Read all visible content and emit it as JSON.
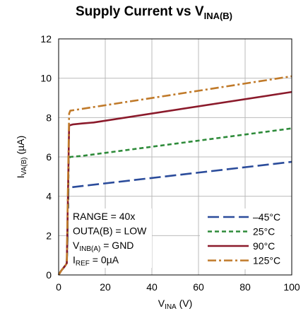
{
  "chart_data": {
    "type": "line",
    "title": "Supply Current vs V",
    "title_sub": "INA(B)",
    "xlabel": "V",
    "xlabel_sub": "INA",
    "xlabel_unit": " (V)",
    "ylabel": "I",
    "ylabel_sub": "VA(B)",
    "ylabel_unit": " (µA)",
    "xlim": [
      0,
      100
    ],
    "ylim": [
      0,
      12
    ],
    "x_ticks": [
      0,
      20,
      40,
      60,
      80,
      100
    ],
    "y_ticks": [
      0,
      2,
      4,
      6,
      8,
      10,
      12
    ],
    "grid": true,
    "annotations": [
      {
        "main": "RANGE = 40x"
      },
      {
        "main": "OUTA(B) = LOW"
      },
      {
        "main": "V",
        "sub": "INB(A)",
        "rest": " = GND"
      },
      {
        "main": "I",
        "sub": "REF",
        "rest": " = 0µA"
      }
    ],
    "legend_position": "bottom-right",
    "series": [
      {
        "name": "–45°C",
        "color": "#2B4C9B",
        "dash": "long-dash",
        "points": [
          [
            0,
            0
          ],
          [
            1,
            0.2
          ],
          [
            2,
            0.35
          ],
          [
            3,
            0.5
          ],
          [
            3.5,
            0.6
          ],
          [
            4,
            2.5
          ],
          [
            4.2,
            4.4
          ],
          [
            5,
            4.45
          ],
          [
            100,
            5.75
          ]
        ]
      },
      {
        "name": "25°C",
        "color": "#2E8B3A",
        "dash": "short-dash",
        "points": [
          [
            0,
            0
          ],
          [
            1,
            0.2
          ],
          [
            2,
            0.35
          ],
          [
            3,
            0.5
          ],
          [
            3.5,
            0.6
          ],
          [
            4,
            3.0
          ],
          [
            4.3,
            5.9
          ],
          [
            5,
            6.0
          ],
          [
            10,
            6.05
          ],
          [
            100,
            7.45
          ]
        ]
      },
      {
        "name": "90°C",
        "color": "#8B1A2B",
        "dash": "solid",
        "points": [
          [
            0,
            0
          ],
          [
            1,
            0.2
          ],
          [
            2,
            0.35
          ],
          [
            3,
            0.5
          ],
          [
            3.5,
            0.6
          ],
          [
            4,
            4.0
          ],
          [
            4.5,
            7.6
          ],
          [
            6,
            7.65
          ],
          [
            10,
            7.7
          ],
          [
            15,
            7.75
          ],
          [
            100,
            9.3
          ]
        ]
      },
      {
        "name": "125°C",
        "color": "#C07A2A",
        "dash": "dash-dot",
        "points": [
          [
            0,
            0
          ],
          [
            1,
            0.2
          ],
          [
            2,
            0.35
          ],
          [
            3,
            0.5
          ],
          [
            3.5,
            0.6
          ],
          [
            4,
            4.5
          ],
          [
            4.5,
            8.2
          ],
          [
            5,
            8.35
          ],
          [
            100,
            10.1
          ]
        ]
      }
    ]
  }
}
